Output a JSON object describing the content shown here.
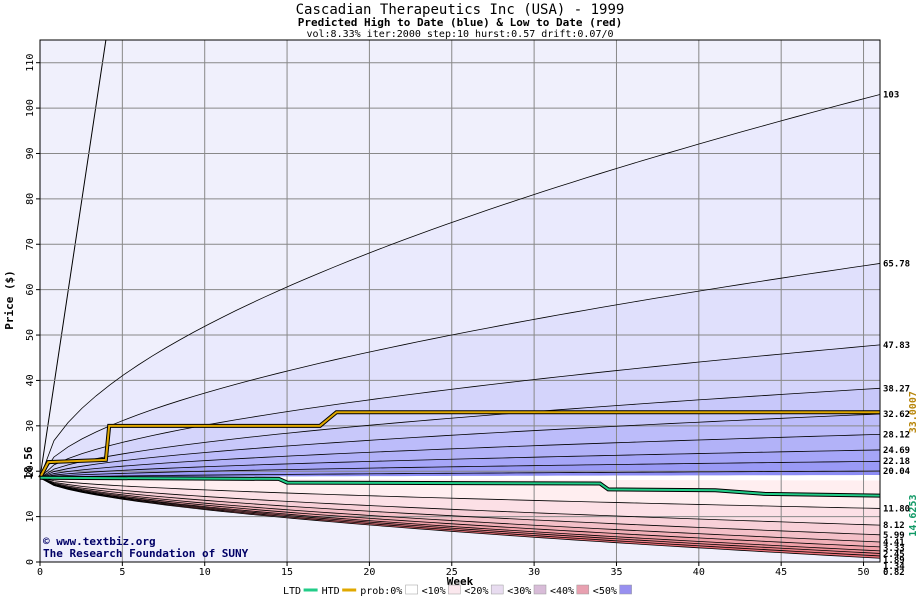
{
  "chart_data": {
    "type": "area",
    "title": "Cascadian Therapeutics Inc (USA) - 1999",
    "subtitle": "Predicted High to Date (blue) &  Low to Date (red)",
    "params": "vol:8.33% iter:2000 step:10 hurst:0.57 drift:0.07/0",
    "xlabel": "Week",
    "ylabel": "Price ($)",
    "xlim": [
      0,
      51
    ],
    "ylim": [
      0,
      115
    ],
    "x_ticks": [
      0,
      5,
      10,
      15,
      20,
      25,
      30,
      35,
      40,
      45,
      50
    ],
    "y_ticks": [
      0,
      10,
      20,
      30,
      40,
      50,
      60,
      70,
      80,
      90,
      100,
      110
    ],
    "grid": true,
    "start_price": 18.56,
    "start_label": "18.56",
    "watermark": [
      "© www.textbiz.org",
      "The Research Foundation of SUNY"
    ],
    "high_quantiles_end": [
      20.04,
      22.18,
      24.69,
      28.12,
      32.62,
      38.27,
      47.83,
      65.78,
      103
    ],
    "high_labels": [
      "20.04",
      "22.18",
      "24.69",
      "28.12",
      "32.62",
      "38.27",
      "47.83",
      "65.78",
      "103"
    ],
    "low_quantiles_end": [
      11.8,
      8.12,
      5.99,
      4.41,
      3.33,
      2.45,
      1.89,
      1.34,
      0.82
    ],
    "low_labels": [
      "11.80",
      "8.12",
      "5.99",
      "4.41",
      "3.33",
      "2.45",
      "1.89",
      "1.34",
      "0.82"
    ],
    "htd_series": {
      "name": "HTD",
      "value_label": "33.0007",
      "x": [
        0,
        0.5,
        4,
        4.2,
        17,
        17.5,
        18,
        51
      ],
      "y": [
        18.56,
        22,
        22.5,
        30,
        30,
        31.5,
        33.0,
        33.0
      ]
    },
    "ltd_series": {
      "name": "LTD",
      "value_label": "14.6253",
      "x": [
        0,
        14.5,
        15,
        34,
        34.5,
        41,
        44,
        51
      ],
      "y": [
        18.56,
        18.3,
        17.5,
        17.3,
        16.0,
        15.8,
        15.0,
        14.63
      ]
    },
    "legend": {
      "items": [
        {
          "label": "LTD",
          "color": "#22cc88",
          "kind": "line"
        },
        {
          "label": "HTD",
          "color": "#e0a800",
          "kind": "line"
        },
        {
          "label": "prob:0%",
          "color": "#ffffff",
          "kind": "box"
        },
        {
          "label": "<10%",
          "color": "#fbe8ee",
          "kind": "box"
        },
        {
          "label": "<20%",
          "color": "#e8dcf0",
          "kind": "box"
        },
        {
          "label": "<30%",
          "color": "#d8bcd8",
          "kind": "box"
        },
        {
          "label": "<40%",
          "color": "#e8a0b0",
          "kind": "box"
        },
        {
          "label": "<50%",
          "color": "#9890f0",
          "kind": "box"
        }
      ]
    },
    "colors": {
      "grid": "#888888",
      "axis": "#000000",
      "htd": "#e0a800",
      "ltd": "#22cc88",
      "background_band": "#f0f0fc"
    }
  }
}
